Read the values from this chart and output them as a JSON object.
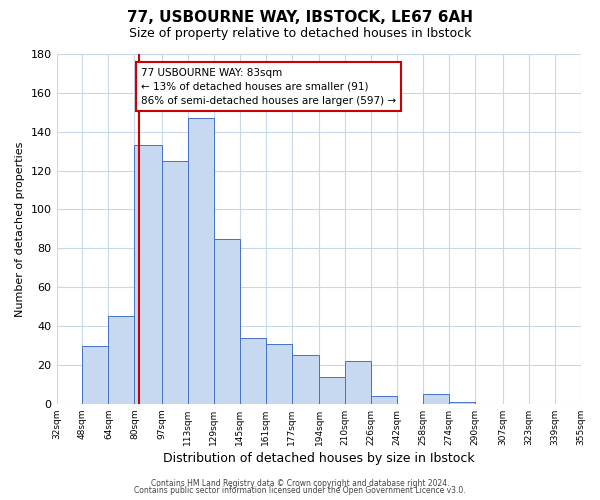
{
  "title": "77, USBOURNE WAY, IBSTOCK, LE67 6AH",
  "subtitle": "Size of property relative to detached houses in Ibstock",
  "xlabel": "Distribution of detached houses by size in Ibstock",
  "ylabel": "Number of detached properties",
  "bin_labels": [
    "32sqm",
    "48sqm",
    "64sqm",
    "80sqm",
    "97sqm",
    "113sqm",
    "129sqm",
    "145sqm",
    "161sqm",
    "177sqm",
    "194sqm",
    "210sqm",
    "226sqm",
    "242sqm",
    "258sqm",
    "274sqm",
    "290sqm",
    "307sqm",
    "323sqm",
    "339sqm",
    "355sqm"
  ],
  "bin_edges": [
    32,
    48,
    64,
    80,
    97,
    113,
    129,
    145,
    161,
    177,
    194,
    210,
    226,
    242,
    258,
    274,
    290,
    307,
    323,
    339,
    355
  ],
  "bar_values": [
    0,
    30,
    45,
    133,
    125,
    147,
    85,
    34,
    31,
    25,
    14,
    22,
    4,
    0,
    5,
    1,
    0,
    0,
    0,
    0
  ],
  "bar_color": "#c6d9f0",
  "bar_edge_color": "#4472c4",
  "property_size": 83,
  "property_line_color": "#cc0000",
  "annotation_line1": "77 USBOURNE WAY: 83sqm",
  "annotation_line2": "← 13% of detached houses are smaller (91)",
  "annotation_line3": "86% of semi-detached houses are larger (597) →",
  "annotation_box_color": "#ffffff",
  "annotation_box_edge": "#cc0000",
  "ylim": [
    0,
    180
  ],
  "yticks": [
    0,
    20,
    40,
    60,
    80,
    100,
    120,
    140,
    160,
    180
  ],
  "footer_line1": "Contains HM Land Registry data © Crown copyright and database right 2024.",
  "footer_line2": "Contains public sector information licensed under the Open Government Licence v3.0.",
  "bg_color": "#ffffff",
  "grid_color": "#c8d8e8",
  "title_fontsize": 11,
  "subtitle_fontsize": 9,
  "ylabel_fontsize": 8,
  "xlabel_fontsize": 9,
  "annotation_fontsize": 7.5,
  "footer_fontsize": 5.5
}
